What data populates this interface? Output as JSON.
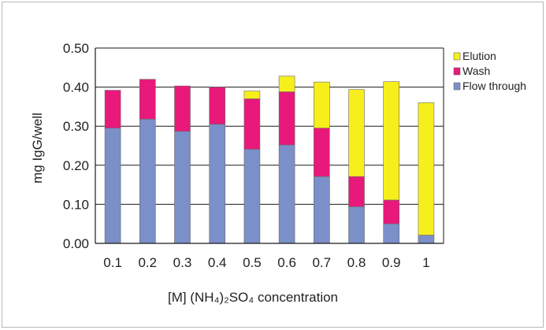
{
  "chart_data": {
    "type": "bar",
    "stacked": true,
    "categories": [
      "0.1",
      "0.2",
      "0.3",
      "0.4",
      "0.5",
      "0.6",
      "0.7",
      "0.8",
      "0.9",
      "1"
    ],
    "series": [
      {
        "name": "Flow through",
        "color": "#7b8fc8",
        "values": [
          0.295,
          0.318,
          0.287,
          0.305,
          0.241,
          0.252,
          0.171,
          0.094,
          0.05,
          0.021
        ]
      },
      {
        "name": "Wash",
        "color": "#e8197a",
        "values": [
          0.097,
          0.102,
          0.116,
          0.095,
          0.129,
          0.136,
          0.124,
          0.077,
          0.061,
          0.0
        ]
      },
      {
        "name": "Elution",
        "color": "#f7ef1c",
        "values": [
          0.0,
          0.0,
          0.0,
          0.0,
          0.02,
          0.04,
          0.118,
          0.223,
          0.303,
          0.339
        ]
      }
    ],
    "legend_order": [
      "Elution",
      "Wash",
      "Flow through"
    ],
    "ytick_labels": [
      "0.00",
      "0.10",
      "0.20",
      "0.30",
      "0.40",
      "0.50"
    ],
    "xlabel": "[M] (NH₄)₂SO₄ concentration",
    "ylabel": "mg IgG/well",
    "ylim": [
      0,
      0.5
    ],
    "grid": true,
    "legend_position": "right"
  }
}
